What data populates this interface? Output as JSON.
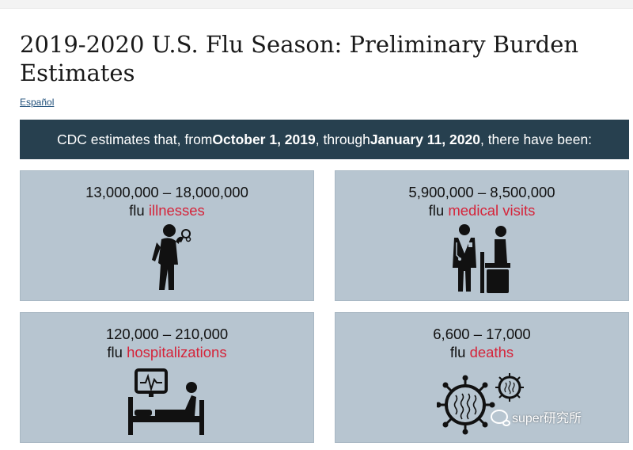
{
  "page": {
    "title": "2019-2020 U.S. Flu Season: Preliminary Burden Estimates",
    "language_link": "Español"
  },
  "banner": {
    "text_1": "CDC estimates that, from ",
    "start_date": "October 1, 2019",
    "text_2": ", through ",
    "end_date": "January 11, 2020",
    "text_3": ", there have been:"
  },
  "cards": [
    {
      "range": "13,000,000 – 18,000,000",
      "prefix": "flu ",
      "label": "illnesses",
      "icon": "sick-person-icon"
    },
    {
      "range": "5,900,000 – 8,500,000",
      "prefix": "flu ",
      "label": "medical visits",
      "icon": "doctor-patient-icon"
    },
    {
      "range": "120,000 – 210,000",
      "prefix": "flu ",
      "label": "hospitalizations",
      "icon": "hospital-bed-icon"
    },
    {
      "range": "6,600 – 17,000",
      "prefix": "flu ",
      "label": "deaths",
      "icon": "virus-icon"
    }
  ],
  "watermark": {
    "text": "super研究所",
    "icon": "wechat-icon"
  },
  "colors": {
    "banner_bg": "#27404f",
    "card_bg": "#b7c5d0",
    "highlight": "#d5243a"
  }
}
